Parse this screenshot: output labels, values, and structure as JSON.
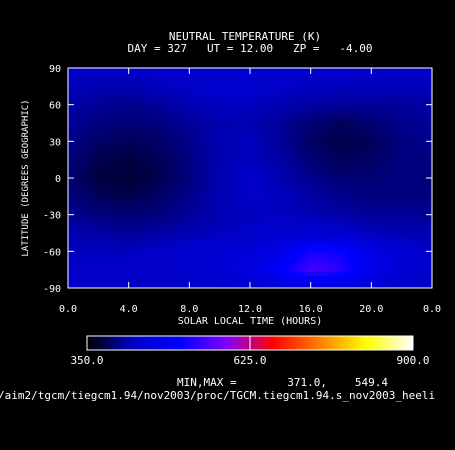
{
  "chart_data": {
    "type": "heatmap",
    "title": "NEUTRAL TEMPERATURE (K)",
    "subtitle": "DAY = 327   UT = 12.00   ZP =   -4.00",
    "xlabel": "SOLAR LOCAL TIME (HOURS)",
    "ylabel": "LATITUDE (DEGREES GEOGRAPHIC)",
    "xlim": [
      0.0,
      24.0
    ],
    "ylim": [
      -90,
      90
    ],
    "x_ticks": [
      "0.0",
      "4.0",
      "8.0",
      "12.0",
      "16.0",
      "20.0",
      "0.0"
    ],
    "y_ticks": [
      "90",
      "60",
      "30",
      "0",
      "-30",
      "-60",
      "-90"
    ],
    "colorbar": {
      "min": 350.0,
      "max": 900.0,
      "labels": [
        "350.0",
        "625.0",
        "900.0"
      ],
      "colors": [
        "#000000",
        "#0000c8",
        "#0000ff",
        "#8000ff",
        "#ff0000",
        "#ff8000",
        "#ffff00",
        "#ffffff"
      ]
    },
    "minmax": {
      "label": "MIN,MAX =",
      "min": "371.0,",
      "max": "549.4"
    },
    "temperature_grid_x": [
      0,
      2,
      4,
      6,
      8,
      10,
      12,
      14,
      16,
      18,
      20,
      22,
      24
    ],
    "temperature_grid_y": [
      90,
      75,
      60,
      45,
      30,
      15,
      0,
      -15,
      -30,
      -45,
      -60,
      -75,
      -90
    ],
    "temperature_grid": [
      [
        430,
        430,
        430,
        430,
        435,
        440,
        440,
        440,
        435,
        435,
        430,
        430,
        430
      ],
      [
        425,
        420,
        420,
        425,
        430,
        435,
        435,
        430,
        425,
        425,
        425,
        425,
        425
      ],
      [
        415,
        410,
        405,
        410,
        420,
        425,
        425,
        420,
        415,
        410,
        410,
        410,
        415
      ],
      [
        410,
        400,
        395,
        400,
        410,
        420,
        420,
        410,
        395,
        385,
        395,
        405,
        410
      ],
      [
        405,
        390,
        385,
        390,
        405,
        420,
        425,
        410,
        390,
        380,
        385,
        400,
        405
      ],
      [
        400,
        380,
        375,
        385,
        400,
        420,
        425,
        415,
        395,
        385,
        390,
        400,
        400
      ],
      [
        395,
        375,
        372,
        380,
        400,
        420,
        430,
        420,
        405,
        395,
        395,
        400,
        395
      ],
      [
        400,
        385,
        380,
        390,
        405,
        420,
        430,
        425,
        415,
        405,
        400,
        400,
        400
      ],
      [
        410,
        400,
        395,
        400,
        410,
        420,
        425,
        425,
        420,
        415,
        410,
        410,
        410
      ],
      [
        420,
        415,
        410,
        415,
        420,
        425,
        430,
        435,
        440,
        435,
        425,
        420,
        420
      ],
      [
        425,
        425,
        425,
        430,
        435,
        440,
        450,
        475,
        520,
        515,
        470,
        440,
        425
      ],
      [
        430,
        430,
        430,
        430,
        435,
        445,
        460,
        500,
        549,
        530,
        480,
        445,
        430
      ],
      [
        430,
        430,
        430,
        430,
        430,
        435,
        440,
        450,
        465,
        460,
        445,
        435,
        430
      ]
    ]
  },
  "footer": {
    "path": "/aim2/tgcm/tiegcm1.94/nov2003/proc/TGCM.tiegcm1.94.s_nov2003_heeli"
  }
}
